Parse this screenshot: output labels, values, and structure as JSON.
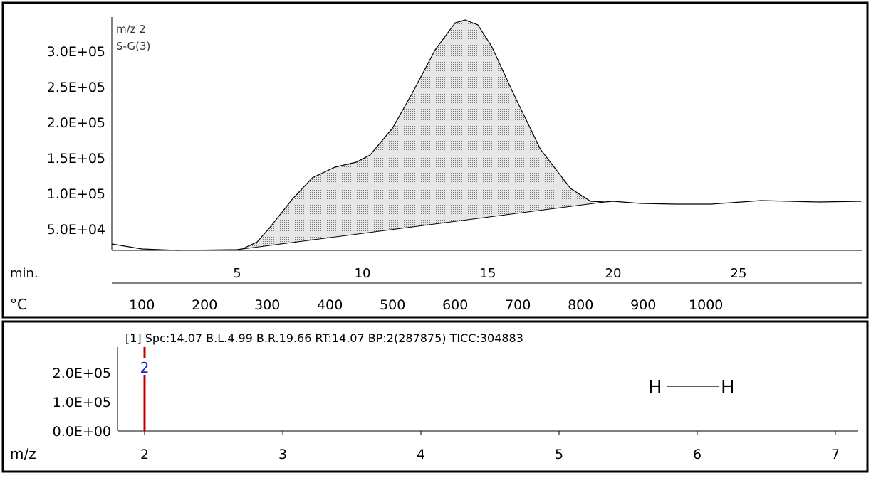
{
  "chart_data": [
    {
      "type": "area",
      "annotations": [
        "m/z 2",
        "S-G(3)"
      ],
      "xlabel": "min.",
      "x2label": "°C",
      "xlim": [
        0,
        29.9
      ],
      "ylim": [
        20000,
        350000
      ],
      "x_ticks": [
        5,
        10,
        15,
        20,
        25
      ],
      "y_ticks": [
        {
          "v": 50000,
          "label": "5.0E+04"
        },
        {
          "v": 100000,
          "label": "1.0E+05"
        },
        {
          "v": 150000,
          "label": "1.5E+05"
        },
        {
          "v": 200000,
          "label": "2.0E+05"
        },
        {
          "v": 250000,
          "label": "2.5E+05"
        },
        {
          "v": 300000,
          "label": "3.0E+05"
        }
      ],
      "temp_ticks": [
        {
          "t": 1.2,
          "label": "100"
        },
        {
          "t": 3.7,
          "label": "200"
        },
        {
          "t": 6.2,
          "label": "300"
        },
        {
          "t": 8.7,
          "label": "400"
        },
        {
          "t": 11.2,
          "label": "500"
        },
        {
          "t": 13.7,
          "label": "600"
        },
        {
          "t": 16.2,
          "label": "700"
        },
        {
          "t": 18.7,
          "label": "800"
        },
        {
          "t": 21.2,
          "label": "900"
        },
        {
          "t": 23.7,
          "label": "1000"
        }
      ],
      "x": [
        0,
        1.2,
        2.6,
        5.0,
        5.2,
        5.8,
        6.3,
        7.2,
        8.0,
        8.9,
        9.75,
        10.3,
        11.2,
        12.0,
        12.9,
        13.7,
        14.1,
        14.6,
        15.15,
        16.0,
        17.1,
        18.3,
        19.1,
        19.66,
        20,
        21.1,
        22.5,
        23.9,
        25.9,
        28.2,
        29.9
      ],
      "y": [
        29000,
        22000,
        20000,
        21000,
        22000,
        32000,
        52000,
        92000,
        122000,
        137000,
        144000,
        154000,
        192000,
        242000,
        302000,
        340000,
        344000,
        337000,
        307000,
        242000,
        162000,
        107000,
        89000,
        88000,
        89000,
        86000,
        85000,
        85000,
        90000,
        88000,
        89000
      ],
      "peak_baseline": {
        "start": [
          4.99,
          21000
        ],
        "end": [
          19.66,
          88000
        ]
      }
    },
    {
      "type": "bar",
      "header": "[1] Spc:14.07 B.L.4.99 B.R.19.66 RT:14.07  BP:2(287875)  TICC:304883",
      "xlabel": "m/z",
      "xlim": [
        1.8,
        7.16
      ],
      "ylim": [
        0,
        295000
      ],
      "x_ticks": [
        "2",
        "3",
        "4",
        "5",
        "6",
        "7"
      ],
      "y_ticks": [
        {
          "v": 0,
          "label": "0.0E+00"
        },
        {
          "v": 100000,
          "label": "1.0E+05"
        },
        {
          "v": 200000,
          "label": "2.0E+05"
        }
      ],
      "peaks": [
        {
          "mz": 2,
          "intensity": 287875,
          "label": "2"
        }
      ],
      "structure": {
        "left": "H",
        "right": "H"
      }
    }
  ],
  "colors": {
    "peak_line": "#c00000",
    "peak_label": "#2020d0",
    "fill": "#c8c8c8"
  }
}
